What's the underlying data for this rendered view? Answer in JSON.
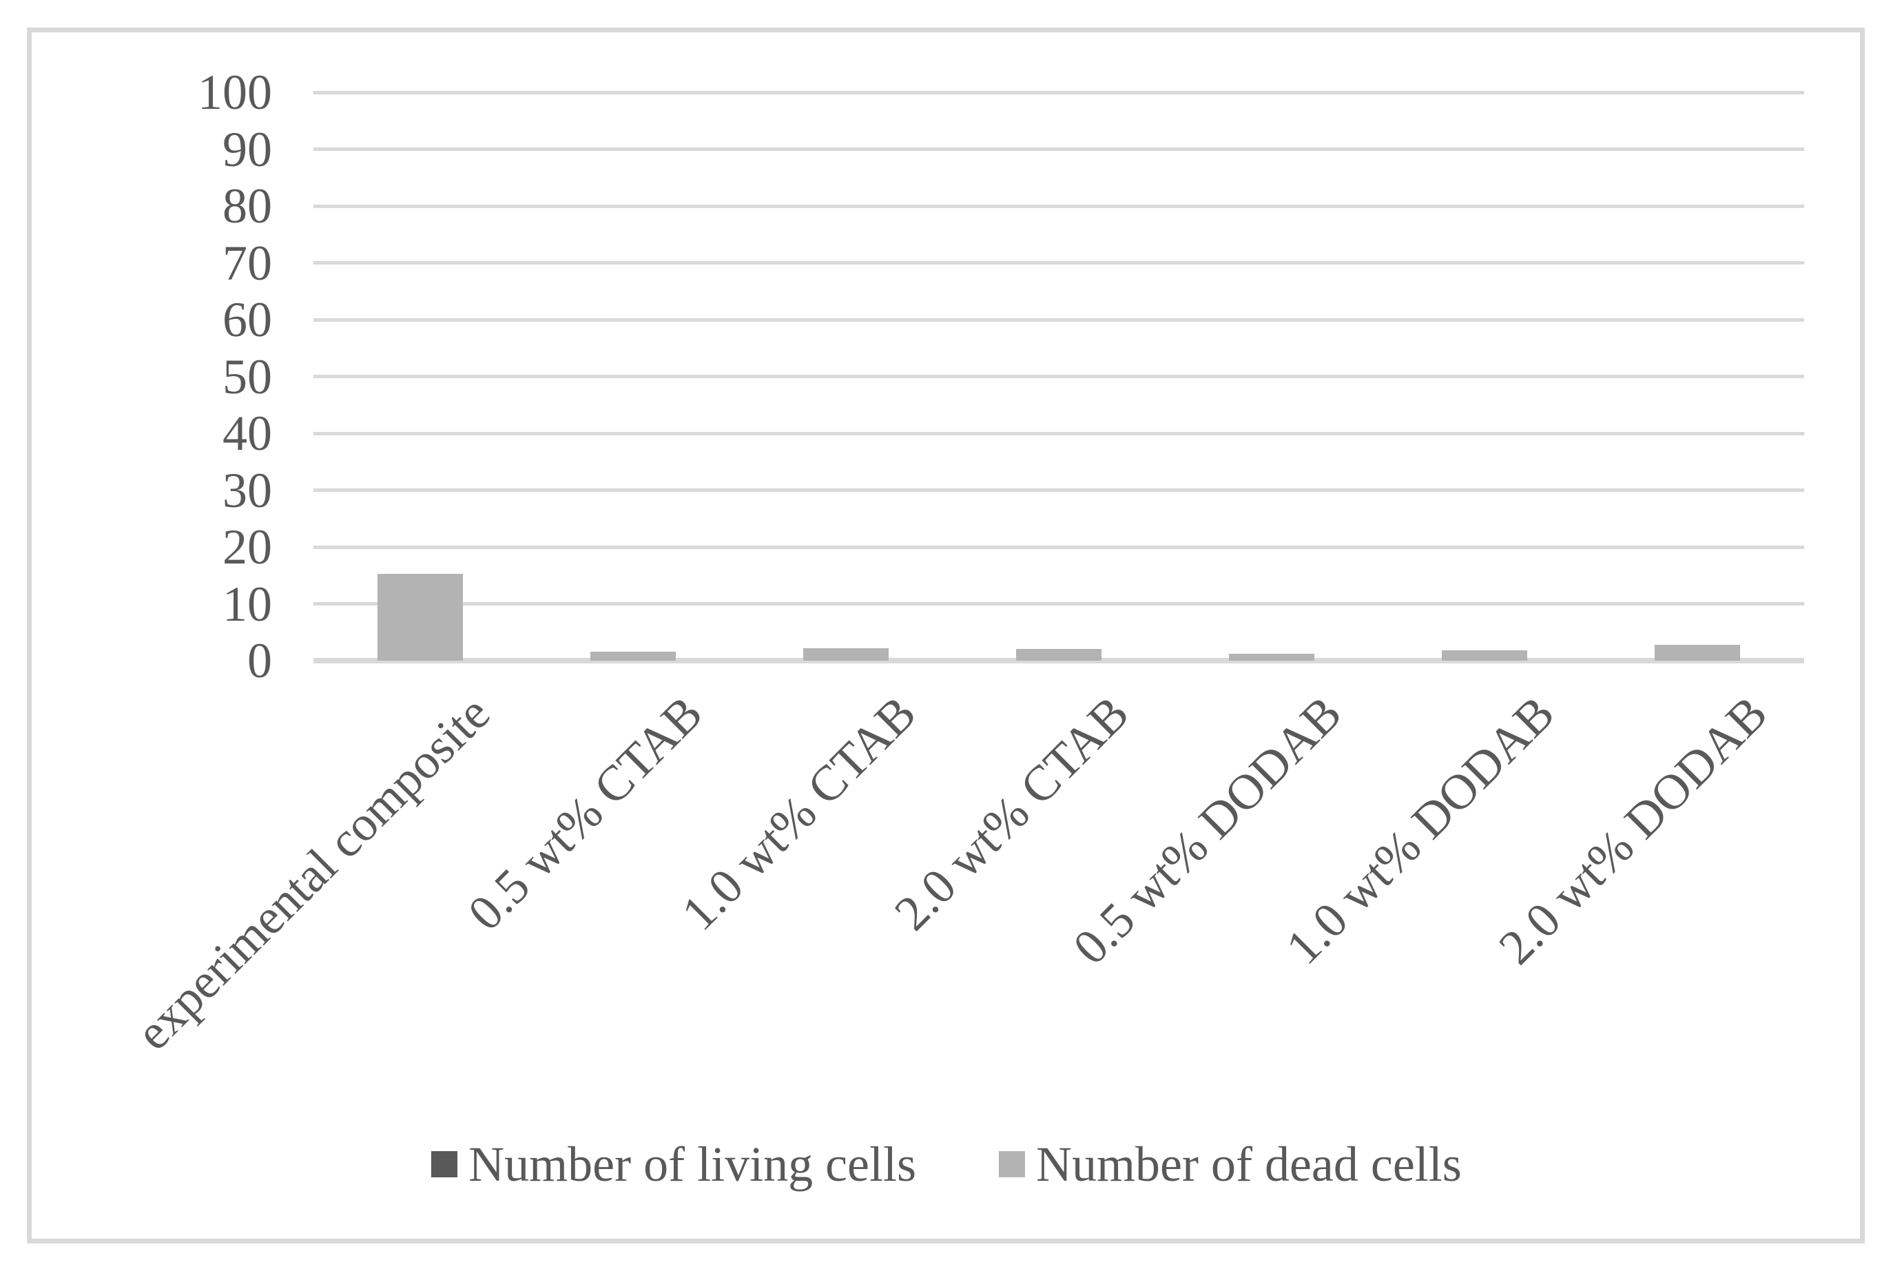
{
  "figure": {
    "background": "#ffffff",
    "border_color": "#d9d9d9"
  },
  "chart_data": {
    "type": "bar",
    "title": "",
    "xlabel": "",
    "ylabel": "",
    "categories": [
      "experimental composite",
      "0.5 wt% CTAB",
      "1.0 wt% CTAB",
      "2.0 wt% CTAB",
      "0.5 wt% DODAB",
      "1.0 wt% DODAB",
      "2.0 wt% DODAB"
    ],
    "series": [
      {
        "name": "Number of living cells",
        "color": "#595959",
        "values": [
          0,
          0,
          0,
          0,
          0,
          0,
          0
        ]
      },
      {
        "name": "Number of dead cells",
        "color": "#b3b3b3",
        "values": [
          15.3,
          1.6,
          2.2,
          2.1,
          1.2,
          1.8,
          2.8
        ]
      }
    ],
    "ylim": [
      0,
      100
    ],
    "y_ticks": [
      "0",
      "10",
      "20",
      "30",
      "40",
      "50",
      "60",
      "70",
      "80",
      "90",
      "100"
    ],
    "grid": true,
    "gridline_color": "#d9d9d9",
    "axis_line_color": "#d9d9d9",
    "tick_label_color": "#595959",
    "bar_color_visible": "#b3b3b3",
    "x_label_rotation_deg": 45,
    "legend_position": "bottom"
  }
}
